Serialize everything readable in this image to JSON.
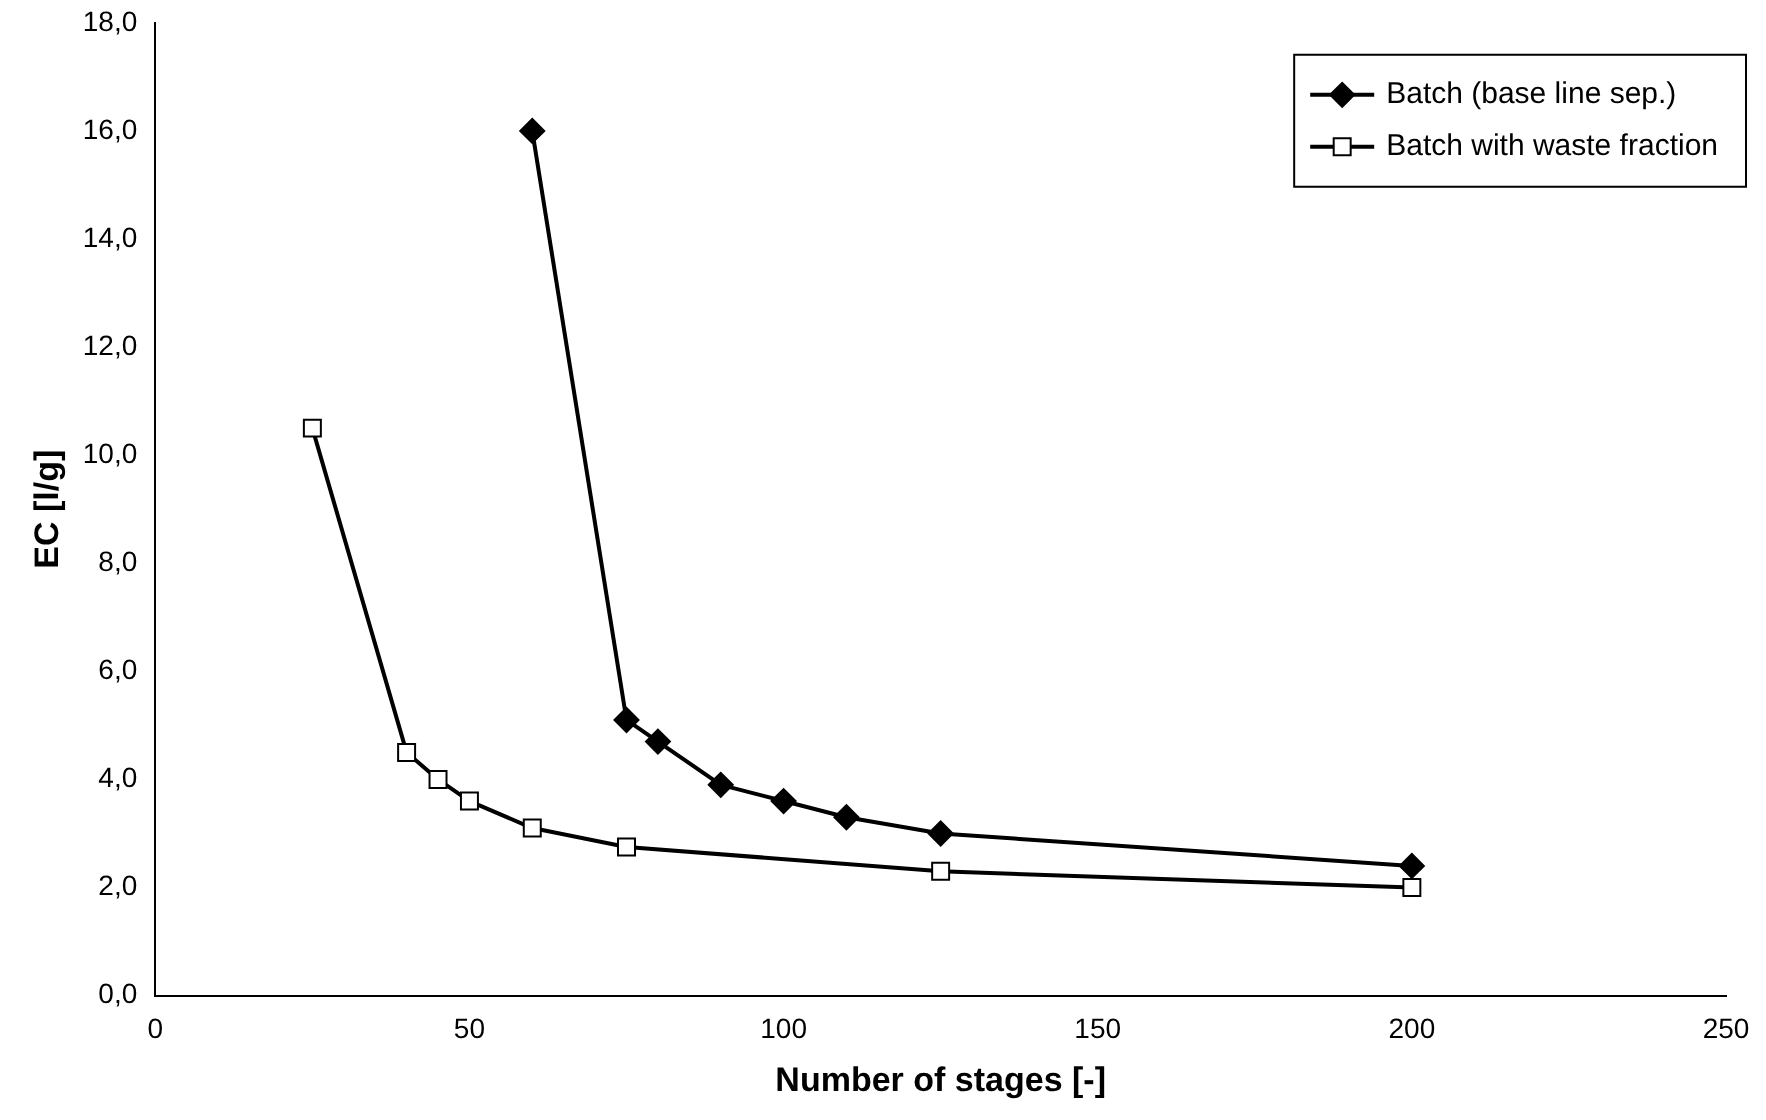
{
  "chart_data": {
    "type": "line",
    "xlabel": "Number of stages [-]",
    "ylabel": "EC [l/g]",
    "xlim": [
      0,
      250
    ],
    "xticks": [
      0,
      50,
      100,
      150,
      200,
      250
    ],
    "ylim": [
      0,
      18
    ],
    "yticks": [
      {
        "value": 0,
        "label": "0,0"
      },
      {
        "value": 2,
        "label": "2,0"
      },
      {
        "value": 4,
        "label": "4,0"
      },
      {
        "value": 6,
        "label": "6,0"
      },
      {
        "value": 8,
        "label": "8,0"
      },
      {
        "value": 10,
        "label": "10,0"
      },
      {
        "value": 12,
        "label": "12,0"
      },
      {
        "value": 14,
        "label": "14,0"
      },
      {
        "value": 16,
        "label": "16,0"
      },
      {
        "value": 18,
        "label": "18,0"
      }
    ],
    "grid": false,
    "legend": "top right",
    "line_style": "solid",
    "series": [
      {
        "name": "Batch (base line sep.)",
        "color": "#000000",
        "marker": "diamond",
        "x": [
          60,
          75,
          80,
          90,
          100,
          110,
          125,
          200
        ],
        "values": [
          16.0,
          5.1,
          4.7,
          3.9,
          3.6,
          3.3,
          3.0,
          2.4
        ]
      },
      {
        "name": "Batch with waste fraction",
        "color": "#000000",
        "marker": "square",
        "x": [
          25,
          40,
          45,
          50,
          60,
          75,
          125,
          200
        ],
        "values": [
          10.5,
          4.5,
          4.0,
          3.6,
          3.1,
          2.75,
          2.3,
          2.0
        ]
      }
    ]
  }
}
